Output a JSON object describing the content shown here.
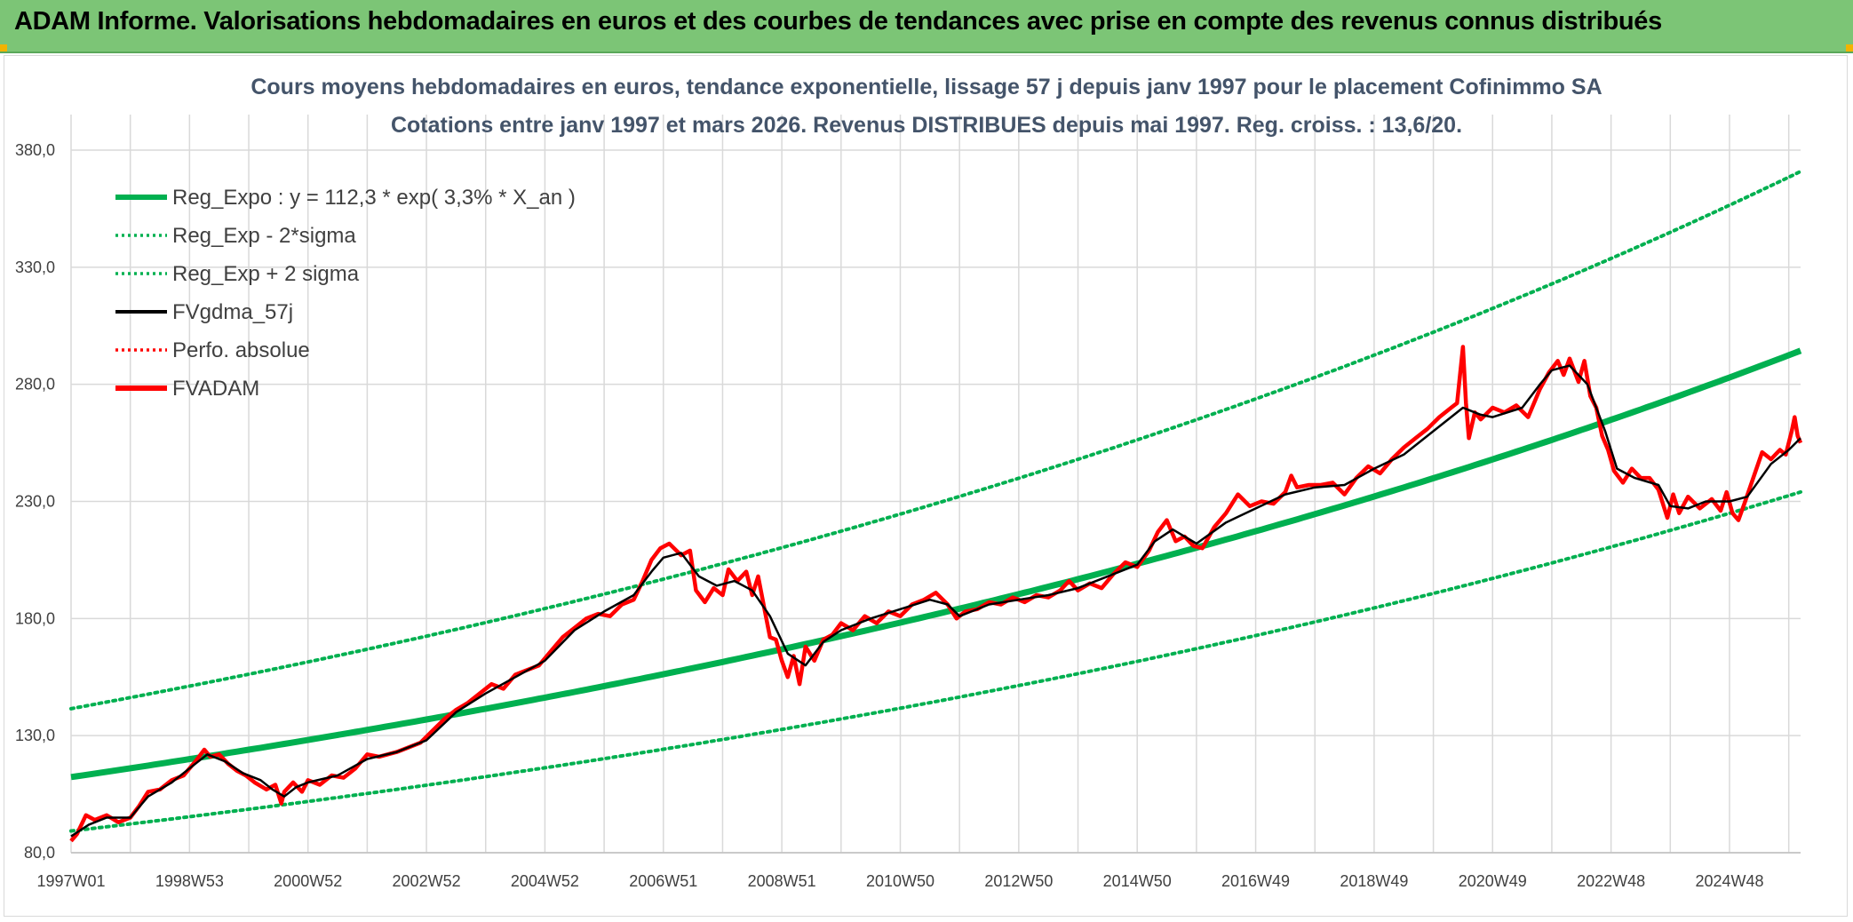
{
  "banner": {
    "title": "ADAM Informe. Valorisations hebdomadaires en euros et des courbes de tendances avec prise en compte des revenus connus distribués"
  },
  "colors": {
    "banner_bg": "#7cc576",
    "reg_expo": "#00b050",
    "fvgdma": "#000000",
    "fvadam": "#ff0000",
    "grid": "#d9d9d9",
    "title_text": "#44546a"
  },
  "chart_data": {
    "type": "line",
    "title_line1": "Cours moyens hebdomadaires en euros, tendance exponentielle, lissage 57 j depuis janv 1997 pour le placement Cofinimmo SA",
    "title_line2": "Cotations entre janv 1997 et mars 2026. Revenus DISTRIBUES depuis mai 1997. Reg. croiss. : 13,6/20.",
    "xlabel": "",
    "ylabel": "",
    "ylim": [
      80,
      380
    ],
    "xlim_years": [
      1997.0,
      2026.2
    ],
    "grid": true,
    "legend_position": "top-left",
    "y_ticks": [
      "80,0",
      "130,0",
      "180,0",
      "230,0",
      "280,0",
      "330,0",
      "380,0"
    ],
    "x_ticks": [
      {
        "label": "1997W01",
        "year": 1997.0
      },
      {
        "label": "1998W53",
        "year": 1999.0
      },
      {
        "label": "2000W52",
        "year": 2001.0
      },
      {
        "label": "2002W52",
        "year": 2003.0
      },
      {
        "label": "2004W52",
        "year": 2005.0
      },
      {
        "label": "2006W51",
        "year": 2007.0
      },
      {
        "label": "2008W51",
        "year": 2009.0
      },
      {
        "label": "2010W50",
        "year": 2011.0
      },
      {
        "label": "2012W50",
        "year": 2013.0
      },
      {
        "label": "2014W50",
        "year": 2015.0
      },
      {
        "label": "2016W49",
        "year": 2017.0
      },
      {
        "label": "2018W49",
        "year": 2019.0
      },
      {
        "label": "2020W49",
        "year": 2021.0
      },
      {
        "label": "2022W48",
        "year": 2023.0
      },
      {
        "label": "2024W48",
        "year": 2025.0
      }
    ],
    "regression": {
      "a": 112.3,
      "rate": 0.033,
      "sigma_low_factor": 0.795,
      "sigma_high_factor": 1.26
    },
    "series": [
      {
        "name": "Reg_Expo : y = 112,3 * exp( 3,3% *  X_an )",
        "style": "solid-thick",
        "color": "#00b050"
      },
      {
        "name": "Reg_Exp - 2*sigma",
        "style": "dotted",
        "color": "#00b050"
      },
      {
        "name": "Reg_Exp + 2 sigma",
        "style": "dotted",
        "color": "#00b050"
      },
      {
        "name": "FVgdma_57j",
        "style": "solid",
        "color": "#000000",
        "points": [
          [
            1997.0,
            87
          ],
          [
            1997.3,
            92
          ],
          [
            1997.6,
            95
          ],
          [
            1998.0,
            95
          ],
          [
            1998.3,
            104
          ],
          [
            1998.7,
            110
          ],
          [
            1999.1,
            118
          ],
          [
            1999.3,
            122
          ],
          [
            1999.6,
            119
          ],
          [
            1999.9,
            114
          ],
          [
            2000.2,
            111
          ],
          [
            2000.4,
            107
          ],
          [
            2000.6,
            104
          ],
          [
            2000.8,
            108
          ],
          [
            2001.0,
            110
          ],
          [
            2001.5,
            113
          ],
          [
            2002.0,
            120
          ],
          [
            2002.5,
            123
          ],
          [
            2003.0,
            128
          ],
          [
            2003.5,
            140
          ],
          [
            2004.0,
            148
          ],
          [
            2004.5,
            155
          ],
          [
            2005.0,
            162
          ],
          [
            2005.5,
            175
          ],
          [
            2006.0,
            183
          ],
          [
            2006.5,
            190
          ],
          [
            2006.8,
            200
          ],
          [
            2007.0,
            206
          ],
          [
            2007.3,
            208
          ],
          [
            2007.6,
            198
          ],
          [
            2007.9,
            194
          ],
          [
            2008.2,
            196
          ],
          [
            2008.5,
            192
          ],
          [
            2008.8,
            181
          ],
          [
            2009.1,
            165
          ],
          [
            2009.4,
            160
          ],
          [
            2009.7,
            170
          ],
          [
            2010.0,
            175
          ],
          [
            2010.5,
            180
          ],
          [
            2011.0,
            184
          ],
          [
            2011.5,
            188
          ],
          [
            2011.8,
            186
          ],
          [
            2012.0,
            181
          ],
          [
            2012.5,
            186
          ],
          [
            2013.0,
            188
          ],
          [
            2013.5,
            190
          ],
          [
            2014.0,
            193
          ],
          [
            2014.5,
            198
          ],
          [
            2015.0,
            203
          ],
          [
            2015.3,
            213
          ],
          [
            2015.6,
            218
          ],
          [
            2016.0,
            212
          ],
          [
            2016.5,
            221
          ],
          [
            2017.0,
            227
          ],
          [
            2017.5,
            233
          ],
          [
            2018.0,
            236
          ],
          [
            2018.5,
            237
          ],
          [
            2019.0,
            244
          ],
          [
            2019.5,
            250
          ],
          [
            2020.0,
            260
          ],
          [
            2020.5,
            270
          ],
          [
            2020.8,
            267
          ],
          [
            2021.0,
            266
          ],
          [
            2021.5,
            270
          ],
          [
            2021.8,
            280
          ],
          [
            2022.0,
            286
          ],
          [
            2022.3,
            288
          ],
          [
            2022.6,
            280
          ],
          [
            2022.9,
            260
          ],
          [
            2023.1,
            244
          ],
          [
            2023.4,
            240
          ],
          [
            2023.8,
            237
          ],
          [
            2024.0,
            228
          ],
          [
            2024.3,
            227
          ],
          [
            2024.6,
            230
          ],
          [
            2025.0,
            230
          ],
          [
            2025.3,
            232
          ],
          [
            2025.7,
            246
          ],
          [
            2026.0,
            252
          ],
          [
            2026.2,
            257
          ]
        ]
      },
      {
        "name": "Perfo. absolue",
        "style": "dotted",
        "color": "#ff0000"
      },
      {
        "name": "FVADAM",
        "style": "solid-thick",
        "color": "#ff0000",
        "points": [
          [
            1997.0,
            85
          ],
          [
            1997.1,
            88
          ],
          [
            1997.25,
            96
          ],
          [
            1997.4,
            94
          ],
          [
            1997.6,
            96
          ],
          [
            1997.8,
            93
          ],
          [
            1998.0,
            95
          ],
          [
            1998.15,
            100
          ],
          [
            1998.3,
            106
          ],
          [
            1998.5,
            107
          ],
          [
            1998.7,
            111
          ],
          [
            1998.9,
            113
          ],
          [
            1999.1,
            119
          ],
          [
            1999.25,
            124
          ],
          [
            1999.35,
            121
          ],
          [
            1999.5,
            122
          ],
          [
            1999.65,
            118
          ],
          [
            1999.8,
            115
          ],
          [
            1999.95,
            113
          ],
          [
            2000.1,
            110
          ],
          [
            2000.3,
            107
          ],
          [
            2000.45,
            109
          ],
          [
            2000.55,
            101
          ],
          [
            2000.6,
            106
          ],
          [
            2000.75,
            110
          ],
          [
            2000.9,
            106
          ],
          [
            2001.0,
            111
          ],
          [
            2001.2,
            109
          ],
          [
            2001.4,
            113
          ],
          [
            2001.6,
            112
          ],
          [
            2001.8,
            116
          ],
          [
            2002.0,
            122
          ],
          [
            2002.2,
            121
          ],
          [
            2002.5,
            123
          ],
          [
            2002.7,
            125
          ],
          [
            2002.9,
            127
          ],
          [
            2003.1,
            132
          ],
          [
            2003.3,
            137
          ],
          [
            2003.5,
            141
          ],
          [
            2003.7,
            144
          ],
          [
            2003.9,
            148
          ],
          [
            2004.1,
            152
          ],
          [
            2004.3,
            150
          ],
          [
            2004.5,
            156
          ],
          [
            2004.7,
            158
          ],
          [
            2004.9,
            160
          ],
          [
            2005.1,
            166
          ],
          [
            2005.3,
            172
          ],
          [
            2005.5,
            176
          ],
          [
            2005.7,
            180
          ],
          [
            2005.9,
            182
          ],
          [
            2006.1,
            181
          ],
          [
            2006.3,
            186
          ],
          [
            2006.5,
            188
          ],
          [
            2006.65,
            196
          ],
          [
            2006.8,
            205
          ],
          [
            2006.95,
            210
          ],
          [
            2007.1,
            212
          ],
          [
            2007.3,
            207
          ],
          [
            2007.45,
            209
          ],
          [
            2007.55,
            192
          ],
          [
            2007.7,
            187
          ],
          [
            2007.85,
            193
          ],
          [
            2008.0,
            190
          ],
          [
            2008.1,
            201
          ],
          [
            2008.25,
            196
          ],
          [
            2008.4,
            200
          ],
          [
            2008.5,
            190
          ],
          [
            2008.6,
            198
          ],
          [
            2008.7,
            185
          ],
          [
            2008.8,
            172
          ],
          [
            2008.9,
            171
          ],
          [
            2009.0,
            162
          ],
          [
            2009.1,
            155
          ],
          [
            2009.2,
            164
          ],
          [
            2009.3,
            152
          ],
          [
            2009.4,
            168
          ],
          [
            2009.55,
            162
          ],
          [
            2009.7,
            171
          ],
          [
            2009.85,
            173
          ],
          [
            2010.0,
            178
          ],
          [
            2010.2,
            175
          ],
          [
            2010.4,
            181
          ],
          [
            2010.6,
            178
          ],
          [
            2010.8,
            183
          ],
          [
            2011.0,
            181
          ],
          [
            2011.2,
            186
          ],
          [
            2011.4,
            188
          ],
          [
            2011.6,
            191
          ],
          [
            2011.8,
            186
          ],
          [
            2011.95,
            180
          ],
          [
            2012.1,
            183
          ],
          [
            2012.3,
            184
          ],
          [
            2012.5,
            187
          ],
          [
            2012.7,
            186
          ],
          [
            2012.9,
            189
          ],
          [
            2013.1,
            187
          ],
          [
            2013.3,
            190
          ],
          [
            2013.5,
            189
          ],
          [
            2013.7,
            192
          ],
          [
            2013.85,
            196
          ],
          [
            2014.0,
            192
          ],
          [
            2014.2,
            195
          ],
          [
            2014.4,
            193
          ],
          [
            2014.6,
            199
          ],
          [
            2014.8,
            204
          ],
          [
            2015.0,
            202
          ],
          [
            2015.2,
            209
          ],
          [
            2015.35,
            217
          ],
          [
            2015.5,
            222
          ],
          [
            2015.65,
            213
          ],
          [
            2015.8,
            215
          ],
          [
            2015.95,
            211
          ],
          [
            2016.1,
            210
          ],
          [
            2016.3,
            219
          ],
          [
            2016.5,
            225
          ],
          [
            2016.7,
            233
          ],
          [
            2016.9,
            228
          ],
          [
            2017.1,
            230
          ],
          [
            2017.3,
            229
          ],
          [
            2017.5,
            234
          ],
          [
            2017.6,
            241
          ],
          [
            2017.7,
            236
          ],
          [
            2017.9,
            237
          ],
          [
            2018.1,
            237
          ],
          [
            2018.3,
            238
          ],
          [
            2018.5,
            233
          ],
          [
            2018.7,
            240
          ],
          [
            2018.9,
            245
          ],
          [
            2019.1,
            242
          ],
          [
            2019.3,
            248
          ],
          [
            2019.5,
            253
          ],
          [
            2019.7,
            257
          ],
          [
            2019.9,
            261
          ],
          [
            2020.1,
            266
          ],
          [
            2020.3,
            270
          ],
          [
            2020.4,
            272
          ],
          [
            2020.5,
            296
          ],
          [
            2020.55,
            272
          ],
          [
            2020.6,
            257
          ],
          [
            2020.7,
            268
          ],
          [
            2020.8,
            265
          ],
          [
            2021.0,
            270
          ],
          [
            2021.2,
            268
          ],
          [
            2021.4,
            271
          ],
          [
            2021.6,
            266
          ],
          [
            2021.8,
            278
          ],
          [
            2021.95,
            285
          ],
          [
            2022.1,
            290
          ],
          [
            2022.2,
            284
          ],
          [
            2022.3,
            291
          ],
          [
            2022.45,
            281
          ],
          [
            2022.55,
            290
          ],
          [
            2022.65,
            275
          ],
          [
            2022.75,
            270
          ],
          [
            2022.85,
            258
          ],
          [
            2022.95,
            252
          ],
          [
            2023.05,
            243
          ],
          [
            2023.2,
            238
          ],
          [
            2023.35,
            244
          ],
          [
            2023.5,
            240
          ],
          [
            2023.65,
            240
          ],
          [
            2023.8,
            235
          ],
          [
            2023.95,
            223
          ],
          [
            2024.05,
            233
          ],
          [
            2024.15,
            225
          ],
          [
            2024.3,
            232
          ],
          [
            2024.5,
            227
          ],
          [
            2024.7,
            231
          ],
          [
            2024.85,
            226
          ],
          [
            2024.95,
            234
          ],
          [
            2025.05,
            225
          ],
          [
            2025.15,
            222
          ],
          [
            2025.25,
            229
          ],
          [
            2025.4,
            240
          ],
          [
            2025.55,
            251
          ],
          [
            2025.7,
            248
          ],
          [
            2025.85,
            252
          ],
          [
            2025.95,
            250
          ],
          [
            2026.05,
            260
          ],
          [
            2026.1,
            266
          ],
          [
            2026.15,
            258
          ],
          [
            2026.2,
            255
          ]
        ]
      }
    ]
  }
}
